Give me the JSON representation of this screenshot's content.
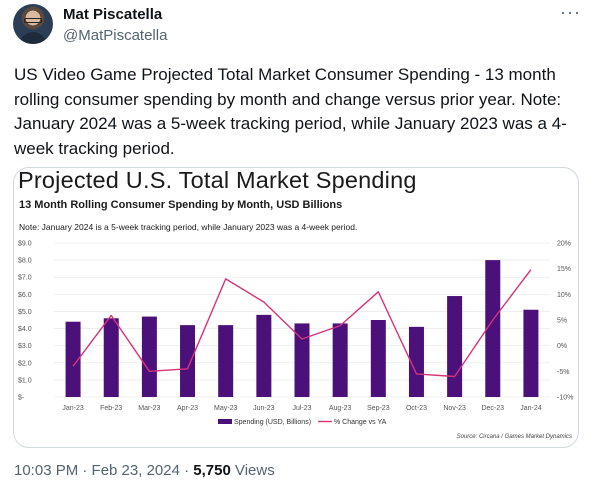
{
  "author": {
    "name": "Mat Piscatella",
    "handle": "@MatPiscatella"
  },
  "more_icon": "···",
  "tweet_text": "US Video Game Projected Total Market Consumer Spending - 13 month rolling consumer spending by month and change versus prior year. Note: January 2024 was a 5-week tracking period, while January 2023 was a 4-week tracking period.",
  "chart": {
    "title": "Projected U.S. Total Market Spending",
    "subtitle": "13 Month Rolling Consumer Spending by Month, USD Billions",
    "note": "Note: January 2024 is a 5-week tracking period, while January 2023 was a 4-week period.",
    "source": "Source: Circana / Games Market Dynamics",
    "bar_color": "#4b1079",
    "line_color": "#d6337a"
  },
  "chart_data": {
    "type": "bar",
    "categories": [
      "Jan-23",
      "Feb-23",
      "Mar-23",
      "Apr-23",
      "May-23",
      "Jun-23",
      "Jul-23",
      "Aug-23",
      "Sep-23",
      "Oct-23",
      "Nov-23",
      "Dec-23",
      "Jan-24"
    ],
    "series": [
      {
        "name": "Spending (USD, Billions)",
        "type": "bar",
        "axis": "left",
        "values": [
          4.4,
          4.6,
          4.7,
          4.2,
          4.2,
          4.8,
          4.3,
          4.3,
          4.5,
          4.1,
          5.9,
          8.0,
          5.1
        ]
      },
      {
        "name": "% Change vs YA",
        "type": "line",
        "axis": "right",
        "values": [
          -4.0,
          5.9,
          -5.0,
          -4.5,
          13.0,
          8.5,
          1.3,
          3.9,
          10.5,
          -5.5,
          -6.0,
          5.0,
          14.8
        ]
      }
    ],
    "y_left": {
      "ticks": [
        "$9.0",
        "$8.0",
        "$7.0",
        "$6.0",
        "$5.0",
        "$4.0",
        "$3.0",
        "$2.0",
        "$1.0",
        "$-"
      ],
      "ylim": [
        0,
        9
      ]
    },
    "y_right": {
      "ticks": [
        "20%",
        "15%",
        "10%",
        "5%",
        "0%",
        "-5%",
        "-10%"
      ],
      "ylim": [
        -10,
        20
      ]
    },
    "legend_position": "bottom-center",
    "grid": true
  },
  "footer": {
    "timestamp": "10:03 PM · Feb 23, 2024 · ",
    "views_count": "5,750",
    "views_label": " Views"
  }
}
